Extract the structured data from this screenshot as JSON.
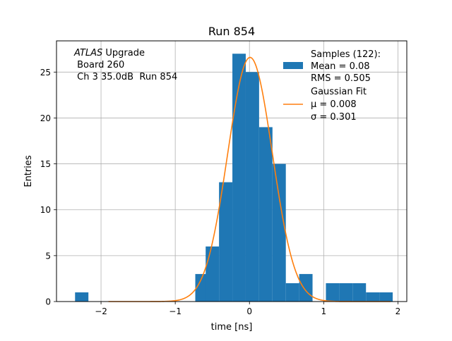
{
  "chart_data": {
    "type": "bar",
    "title": "Run 854",
    "xlabel": "time [ns]",
    "ylabel": "Entries",
    "xlim": [
      -2.6,
      2.12
    ],
    "ylim": [
      0,
      28.4
    ],
    "grid": true,
    "x_ticks": [
      -2,
      -1,
      0,
      1,
      2
    ],
    "y_ticks": [
      0,
      5,
      10,
      15,
      20,
      25
    ],
    "annotation": {
      "line1_italic": "ATLAS",
      "line1_rest": " Upgrade",
      "line2": " Board 260",
      "line3": " Ch 3 35.0dB  Run 854"
    },
    "legend": {
      "position": "top-right",
      "hist_lines": [
        "Samples (122):",
        "Mean = 0.08",
        "RMS = 0.505"
      ],
      "fit_lines": [
        "Gaussian Fit",
        "μ = 0.008",
        "σ = 0.301"
      ]
    },
    "histogram": {
      "name": "Samples",
      "color": "#1f77b4",
      "bin_width": 0.18,
      "bins": [
        {
          "x0": -2.35,
          "count": 1
        },
        {
          "x0": -2.17,
          "count": 0
        },
        {
          "x0": -1.99,
          "count": 0
        },
        {
          "x0": -1.81,
          "count": 0
        },
        {
          "x0": -1.63,
          "count": 0
        },
        {
          "x0": -1.45,
          "count": 0
        },
        {
          "x0": -1.27,
          "count": 0
        },
        {
          "x0": -1.09,
          "count": 0
        },
        {
          "x0": -0.91,
          "count": 0
        },
        {
          "x0": -0.73,
          "count": 3
        },
        {
          "x0": -0.59,
          "count": 6
        },
        {
          "x0": -0.41,
          "count": 13
        },
        {
          "x0": -0.23,
          "count": 27
        },
        {
          "x0": -0.05,
          "count": 25
        },
        {
          "x0": 0.13,
          "count": 19
        },
        {
          "x0": 0.31,
          "count": 15
        },
        {
          "x0": 0.49,
          "count": 2
        },
        {
          "x0": 0.67,
          "count": 3
        },
        {
          "x0": 0.85,
          "count": 0
        },
        {
          "x0": 1.03,
          "count": 2
        },
        {
          "x0": 1.21,
          "count": 2
        },
        {
          "x0": 1.39,
          "count": 2
        },
        {
          "x0": 1.57,
          "count": 1
        },
        {
          "x0": 1.75,
          "count": 1
        }
      ]
    },
    "fit": {
      "name": "Gaussian Fit",
      "color": "#ff7f0e",
      "amplitude": 26.6,
      "mu": 0.008,
      "sigma": 0.301,
      "x_range": [
        -1.9,
        1.9
      ]
    }
  }
}
